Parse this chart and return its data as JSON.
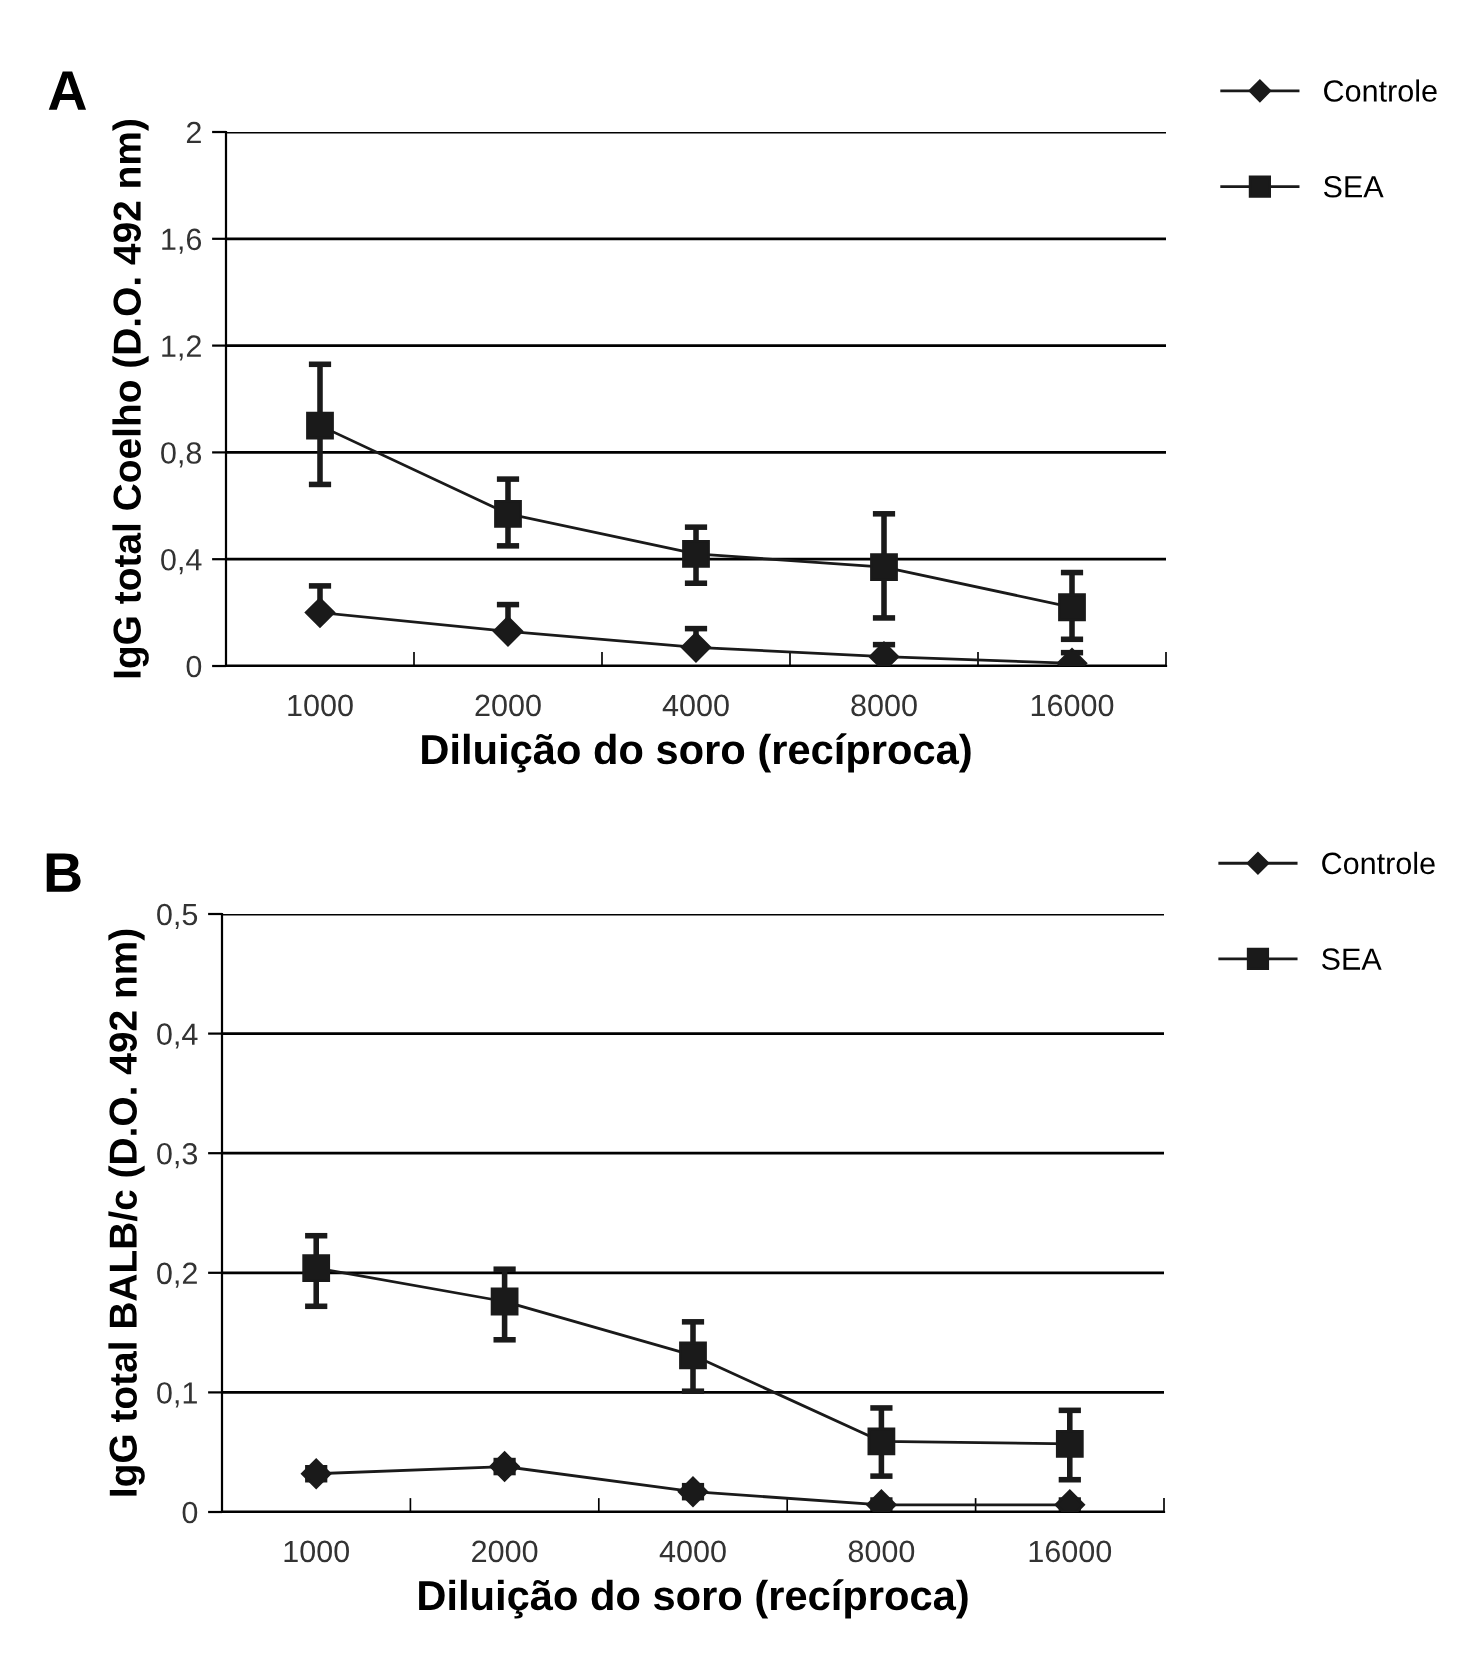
{
  "chart_data": [
    {
      "type": "line",
      "title": "A",
      "xlabel": "Diluição do soro (recíproca)",
      "ylabel": "IgG total Coelho (D.O. 492 nm)",
      "categories": [
        "1000",
        "2000",
        "4000",
        "8000",
        "16000"
      ],
      "ylim": [
        0,
        2
      ],
      "yticks": [
        0,
        {
          "value": 0.4,
          "label": "0,4"
        },
        {
          "value": 0.8,
          "label": "0,8"
        },
        {
          "value": 1.2,
          "label": "1,2"
        },
        {
          "value": 1.6,
          "label": "1,6"
        },
        2
      ],
      "grid": "y",
      "legend": "top right",
      "series": [
        {
          "name": "Controle",
          "color": "#1a1a1a",
          "marker": "diamond",
          "values": [
            0.2,
            0.13,
            0.07,
            0.035,
            0.01
          ],
          "errors": [
            [
              0.2,
              0.3
            ],
            [
              0.13,
              0.23
            ],
            [
              0.07,
              0.14
            ],
            [
              0.035,
              0.08
            ],
            [
              0.01,
              0.05
            ]
          ]
        },
        {
          "name": "SEA",
          "color": "#1a1a1a",
          "marker": "square",
          "values": [
            0.9,
            0.57,
            0.42,
            0.37,
            0.22
          ],
          "errors": [
            [
              0.68,
              1.13
            ],
            [
              0.45,
              0.7
            ],
            [
              0.31,
              0.52
            ],
            [
              0.18,
              0.57
            ],
            [
              0.1,
              0.35
            ]
          ]
        }
      ]
    },
    {
      "type": "line",
      "title": "B",
      "xlabel": "Diluição do soro (recíproca)",
      "ylabel": "IgG total BALB/c (D.O. 492 nm)",
      "categories": [
        "1000",
        "2000",
        "4000",
        "8000",
        "16000"
      ],
      "ylim": [
        0,
        0.5
      ],
      "yticks": [
        0,
        {
          "value": 0.1,
          "label": "0,1"
        },
        {
          "value": 0.2,
          "label": "0,2"
        },
        {
          "value": 0.3,
          "label": "0,3"
        },
        {
          "value": 0.4,
          "label": "0,4"
        },
        {
          "value": 0.5,
          "label": "0,5"
        }
      ],
      "grid": "y",
      "legend": "top right",
      "series": [
        {
          "name": "Controle",
          "color": "#1a1a1a",
          "marker": "diamond",
          "values": [
            0.032,
            0.038,
            0.017,
            0.006,
            0.006
          ],
          "errors": [
            0.005,
            0.005,
            0.005,
            0.004,
            0.004
          ]
        },
        {
          "name": "SEA",
          "color": "#1a1a1a",
          "marker": "square",
          "values": [
            0.204,
            0.176,
            0.131,
            0.059,
            0.057
          ],
          "errors": [
            [
              0.172,
              0.231
            ],
            [
              0.144,
              0.203
            ],
            [
              0.101,
              0.159
            ],
            [
              0.03,
              0.087
            ],
            [
              0.027,
              0.085
            ]
          ]
        }
      ]
    }
  ]
}
